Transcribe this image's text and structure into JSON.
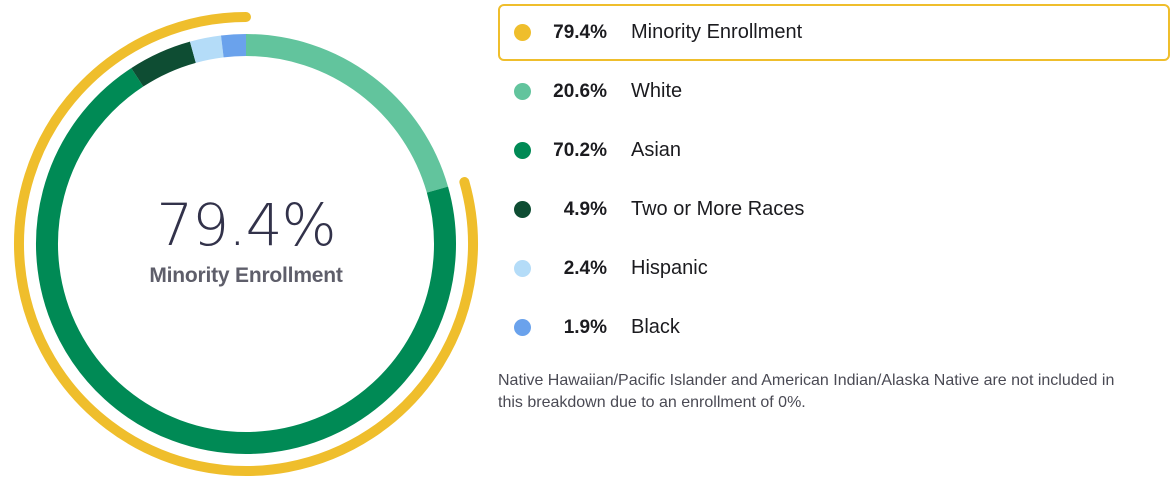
{
  "chart_data": {
    "type": "donut",
    "center": {
      "value": "79.4%",
      "caption": "Minority Enrollment"
    },
    "outer_ring": {
      "name": "Minority Enrollment",
      "value": 79.4,
      "color": "#efbe2c"
    },
    "series": [
      {
        "name": "White",
        "value": 20.6,
        "display": "20.6%",
        "color": "#62c49d"
      },
      {
        "name": "Asian",
        "value": 70.2,
        "display": "70.2%",
        "color": "#008a55"
      },
      {
        "name": "Two or More Races",
        "value": 4.9,
        "display": "4.9%",
        "color": "#0e4d33"
      },
      {
        "name": "Hispanic",
        "value": 2.4,
        "display": "2.4%",
        "color": "#b4dcf8"
      },
      {
        "name": "Black",
        "value": 1.9,
        "display": "1.9%",
        "color": "#6aa2ec"
      }
    ],
    "legend": [
      {
        "value": "79.4%",
        "label": "Minority Enrollment",
        "color": "#efbe2c",
        "active": true
      },
      {
        "value": "20.6%",
        "label": "White",
        "color": "#62c49d",
        "active": false
      },
      {
        "value": "70.2%",
        "label": "Asian",
        "color": "#008a55",
        "active": false
      },
      {
        "value": "4.9%",
        "label": "Two or More Races",
        "color": "#0e4d33",
        "active": false
      },
      {
        "value": "2.4%",
        "label": "Hispanic",
        "color": "#b4dcf8",
        "active": false
      },
      {
        "value": "1.9%",
        "label": "Black",
        "color": "#6aa2ec",
        "active": false
      }
    ],
    "legend_placement": "right",
    "footnote": "Native Hawaiian/Pacific Islander and American Indian/Alaska Native are not included in this breakdown due to an enrollment of 0%."
  }
}
